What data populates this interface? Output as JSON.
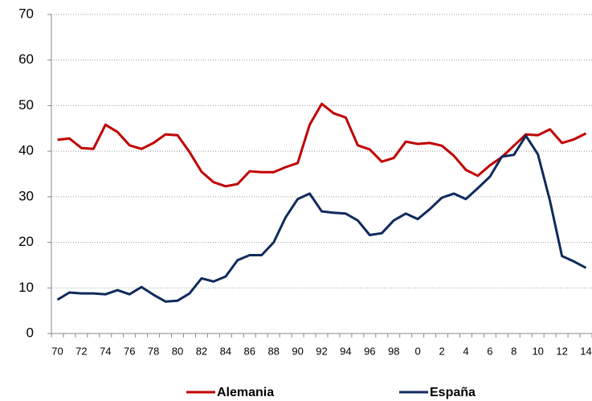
{
  "chart_data": {
    "type": "line",
    "categories": [
      "70",
      null,
      "72",
      null,
      "74",
      null,
      "76",
      null,
      "78",
      null,
      "80",
      null,
      "82",
      null,
      "84",
      null,
      "86",
      null,
      "88",
      null,
      "90",
      null,
      "92",
      null,
      "94",
      null,
      "96",
      null,
      "98",
      null,
      "0",
      null,
      "2",
      null,
      "4",
      null,
      "6",
      null,
      "8",
      null,
      "10",
      null,
      "12",
      null,
      "14"
    ],
    "series": [
      {
        "name": "Alemania",
        "color": "#c00000",
        "values": [
          42.5,
          42.8,
          40.7,
          40.5,
          45.8,
          44.2,
          41.3,
          40.5,
          41.8,
          43.7,
          43.5,
          39.8,
          35.5,
          33.2,
          32.3,
          32.8,
          35.6,
          35.4,
          35.4,
          36.5,
          37.4,
          45.8,
          50.4,
          48.3,
          47.4,
          41.3,
          40.4,
          37.7,
          38.5,
          42.1,
          41.6,
          41.8,
          41.2,
          39.0,
          35.9,
          34.6,
          36.9,
          38.7,
          41.2,
          43.7,
          43.5,
          44.8,
          41.8,
          42.6,
          43.9
        ]
      },
      {
        "name": "España",
        "color": "#0f2a5c",
        "values": [
          7.4,
          9.0,
          8.8,
          8.8,
          8.6,
          9.5,
          8.6,
          10.2,
          8.5,
          7.0,
          7.2,
          8.8,
          12.1,
          11.4,
          12.5,
          16.1,
          17.2,
          17.2,
          20.0,
          25.5,
          29.5,
          30.7,
          26.8,
          26.5,
          26.3,
          24.8,
          21.6,
          22.0,
          24.8,
          26.3,
          25.1,
          27.3,
          29.8,
          30.7,
          29.5,
          31.9,
          34.4,
          38.8,
          39.2,
          43.4,
          39.3,
          29.1,
          17.0,
          15.8,
          14.4
        ]
      }
    ],
    "ylim": [
      0,
      70
    ],
    "yticks": [
      0,
      10,
      20,
      30,
      40,
      50,
      60,
      70
    ],
    "grid": true,
    "legend": "bottom"
  }
}
